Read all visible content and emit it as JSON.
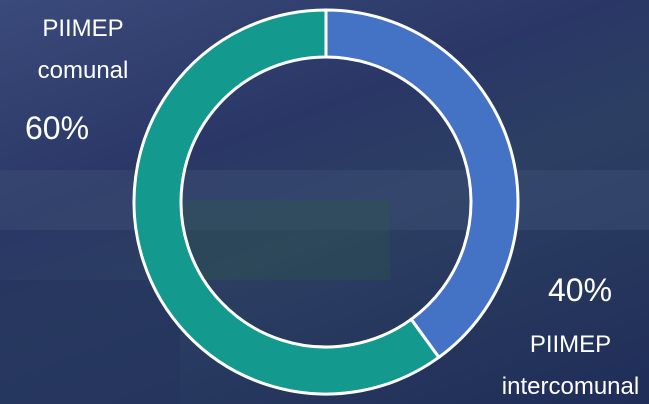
{
  "chart_data": {
    "type": "donut",
    "categories": [
      "PIIMEP intercomunal",
      "PIIMEP comunal"
    ],
    "values": [
      40,
      60
    ],
    "value_labels": [
      "40%",
      "60%"
    ],
    "colors": [
      "#4472c4",
      "#13998d"
    ]
  }
}
